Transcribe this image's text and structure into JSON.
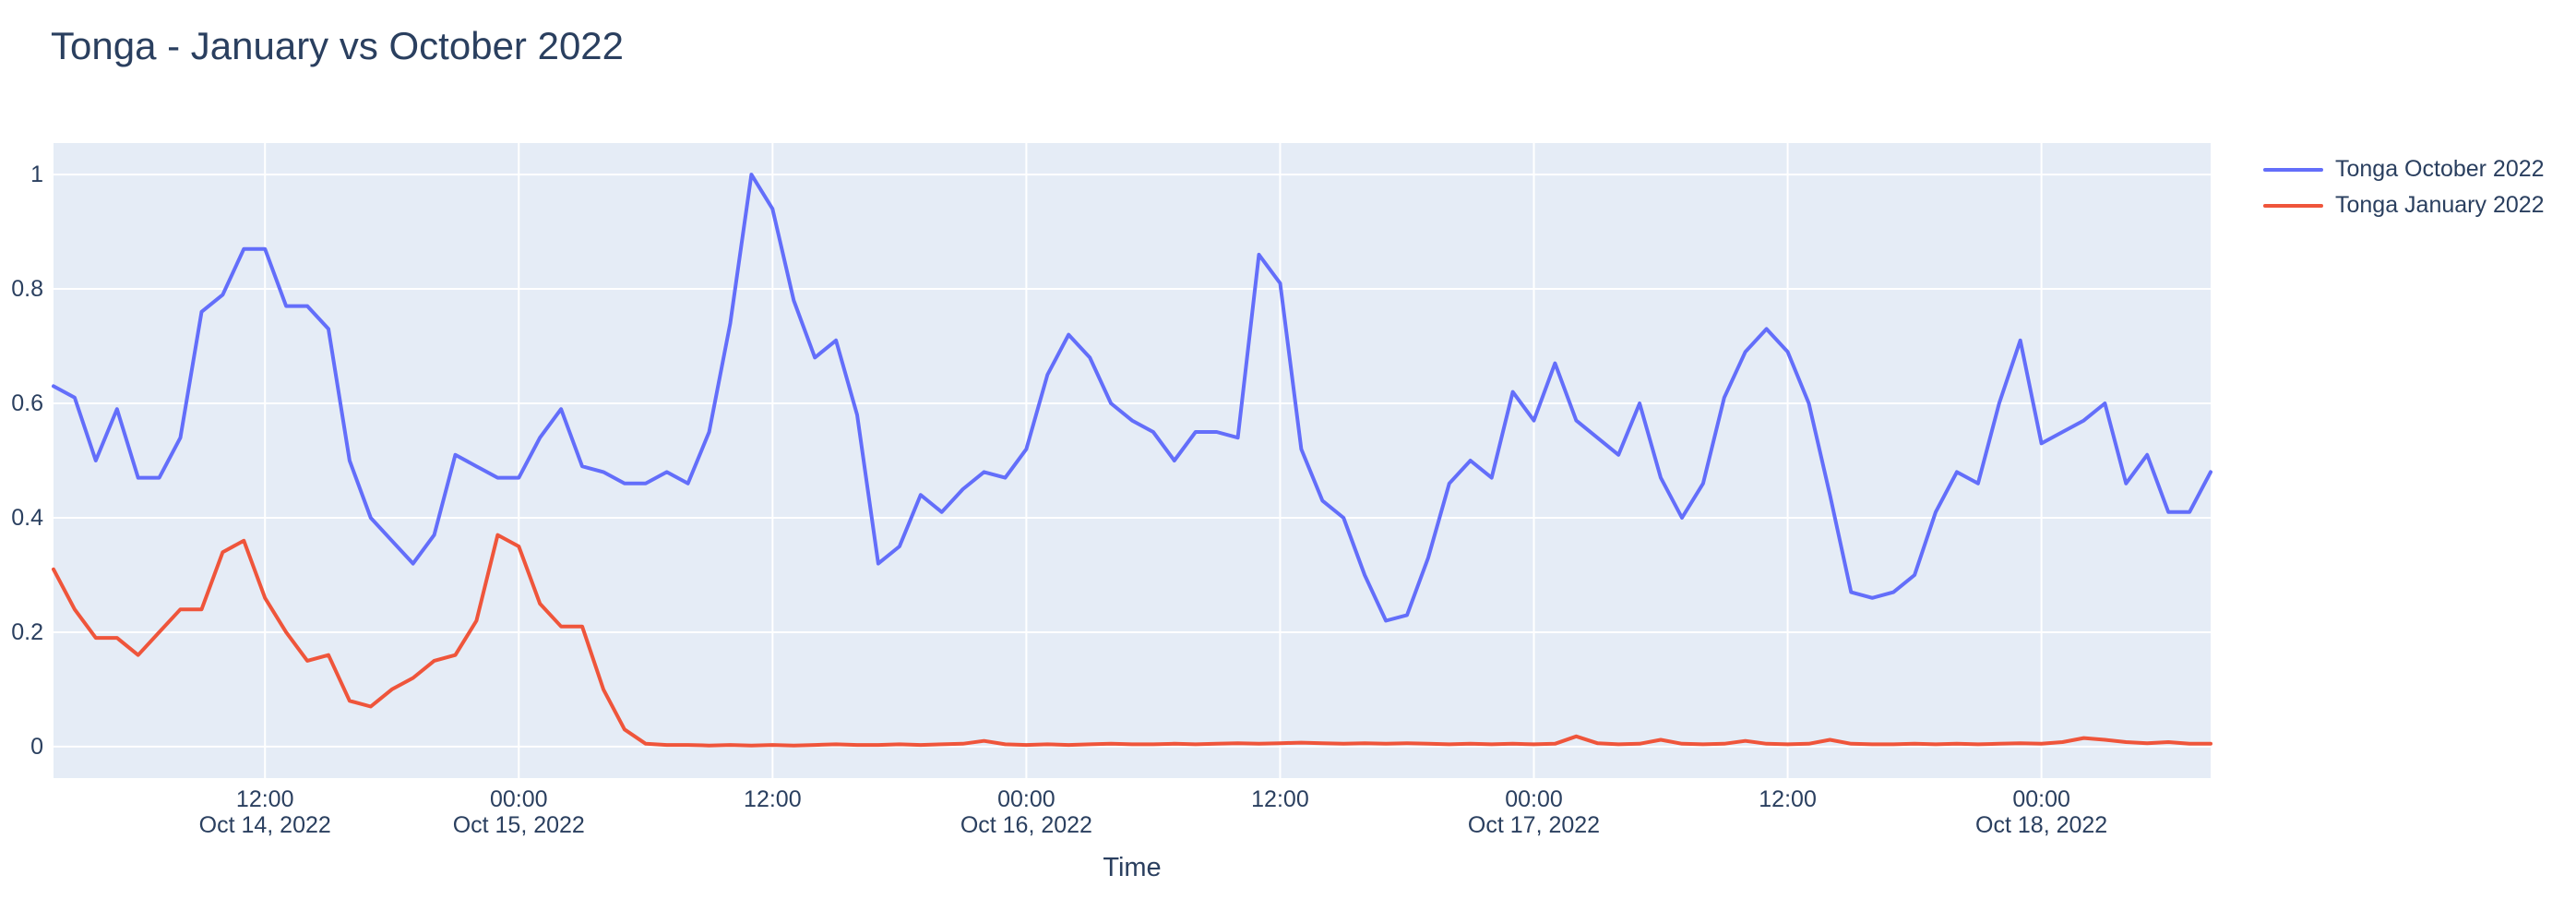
{
  "title": "Tonga - January vs October 2022",
  "colors": {
    "paper_bg": "#ffffff",
    "plot_bg": "#e5ecf6",
    "grid": "#ffffff",
    "text": "#2a3f5f",
    "october_line": "#636efa",
    "january_line": "#ef553b"
  },
  "x_axis": {
    "title": "Time",
    "ticks": [
      {
        "index": 10,
        "line1": "12:00",
        "line2": "Oct 14, 2022"
      },
      {
        "index": 22,
        "line1": "00:00",
        "line2": "Oct 15, 2022"
      },
      {
        "index": 34,
        "line1": "12:00",
        "line2": ""
      },
      {
        "index": 46,
        "line1": "00:00",
        "line2": "Oct 16, 2022"
      },
      {
        "index": 58,
        "line1": "12:00",
        "line2": ""
      },
      {
        "index": 70,
        "line1": "00:00",
        "line2": "Oct 17, 2022"
      },
      {
        "index": 82,
        "line1": "12:00",
        "line2": ""
      },
      {
        "index": 94,
        "line1": "00:00",
        "line2": "Oct 18, 2022"
      }
    ]
  },
  "y_axis": {
    "ticks": [
      {
        "label": "0",
        "value": 0
      },
      {
        "label": "0.2",
        "value": 0.2
      },
      {
        "label": "0.4",
        "value": 0.4
      },
      {
        "label": "0.6",
        "value": 0.6
      },
      {
        "label": "0.8",
        "value": 0.8
      },
      {
        "label": "1",
        "value": 1
      }
    ]
  },
  "chart_data": {
    "type": "line",
    "title": "Tonga - January vs October 2022",
    "xlabel": "Time",
    "ylabel": "",
    "ylim": [
      -0.055,
      1.055
    ],
    "grid": true,
    "legend_position": "top-right",
    "x_interval": "1 hour",
    "x": [
      "2022-10-14 02:00",
      "2022-10-14 03:00",
      "2022-10-14 04:00",
      "2022-10-14 05:00",
      "2022-10-14 06:00",
      "2022-10-14 07:00",
      "2022-10-14 08:00",
      "2022-10-14 09:00",
      "2022-10-14 10:00",
      "2022-10-14 11:00",
      "2022-10-14 12:00",
      "2022-10-14 13:00",
      "2022-10-14 14:00",
      "2022-10-14 15:00",
      "2022-10-14 16:00",
      "2022-10-14 17:00",
      "2022-10-14 18:00",
      "2022-10-14 19:00",
      "2022-10-14 20:00",
      "2022-10-14 21:00",
      "2022-10-14 22:00",
      "2022-10-14 23:00",
      "2022-10-15 00:00",
      "2022-10-15 01:00",
      "2022-10-15 02:00",
      "2022-10-15 03:00",
      "2022-10-15 04:00",
      "2022-10-15 05:00",
      "2022-10-15 06:00",
      "2022-10-15 07:00",
      "2022-10-15 08:00",
      "2022-10-15 09:00",
      "2022-10-15 10:00",
      "2022-10-15 11:00",
      "2022-10-15 12:00",
      "2022-10-15 13:00",
      "2022-10-15 14:00",
      "2022-10-15 15:00",
      "2022-10-15 16:00",
      "2022-10-15 17:00",
      "2022-10-15 18:00",
      "2022-10-15 19:00",
      "2022-10-15 20:00",
      "2022-10-15 21:00",
      "2022-10-15 22:00",
      "2022-10-15 23:00",
      "2022-10-16 00:00",
      "2022-10-16 01:00",
      "2022-10-16 02:00",
      "2022-10-16 03:00",
      "2022-10-16 04:00",
      "2022-10-16 05:00",
      "2022-10-16 06:00",
      "2022-10-16 07:00",
      "2022-10-16 08:00",
      "2022-10-16 09:00",
      "2022-10-16 10:00",
      "2022-10-16 11:00",
      "2022-10-16 12:00",
      "2022-10-16 13:00",
      "2022-10-16 14:00",
      "2022-10-16 15:00",
      "2022-10-16 16:00",
      "2022-10-16 17:00",
      "2022-10-16 18:00",
      "2022-10-16 19:00",
      "2022-10-16 20:00",
      "2022-10-16 21:00",
      "2022-10-16 22:00",
      "2022-10-16 23:00",
      "2022-10-17 00:00",
      "2022-10-17 01:00",
      "2022-10-17 02:00",
      "2022-10-17 03:00",
      "2022-10-17 04:00",
      "2022-10-17 05:00",
      "2022-10-17 06:00",
      "2022-10-17 07:00",
      "2022-10-17 08:00",
      "2022-10-17 09:00",
      "2022-10-17 10:00",
      "2022-10-17 11:00",
      "2022-10-17 12:00",
      "2022-10-17 13:00",
      "2022-10-17 14:00",
      "2022-10-17 15:00",
      "2022-10-17 16:00",
      "2022-10-17 17:00",
      "2022-10-17 18:00",
      "2022-10-17 19:00",
      "2022-10-17 20:00",
      "2022-10-17 21:00",
      "2022-10-17 22:00",
      "2022-10-17 23:00",
      "2022-10-18 00:00",
      "2022-10-18 01:00",
      "2022-10-18 02:00",
      "2022-10-18 03:00",
      "2022-10-18 04:00",
      "2022-10-18 05:00",
      "2022-10-18 06:00",
      "2022-10-18 07:00",
      "2022-10-18 08:00"
    ],
    "series": [
      {
        "name": "Tonga October 2022",
        "color": "#636efa",
        "values": [
          0.63,
          0.61,
          0.5,
          0.59,
          0.47,
          0.47,
          0.54,
          0.76,
          0.79,
          0.87,
          0.87,
          0.77,
          0.77,
          0.73,
          0.5,
          0.4,
          0.36,
          0.32,
          0.37,
          0.51,
          0.49,
          0.47,
          0.47,
          0.54,
          0.59,
          0.49,
          0.48,
          0.46,
          0.46,
          0.48,
          0.46,
          0.55,
          0.74,
          1.0,
          0.94,
          0.78,
          0.68,
          0.71,
          0.58,
          0.32,
          0.35,
          0.44,
          0.41,
          0.45,
          0.48,
          0.47,
          0.52,
          0.65,
          0.72,
          0.68,
          0.6,
          0.57,
          0.55,
          0.5,
          0.55,
          0.55,
          0.54,
          0.86,
          0.81,
          0.52,
          0.43,
          0.4,
          0.3,
          0.22,
          0.23,
          0.33,
          0.46,
          0.5,
          0.47,
          0.62,
          0.57,
          0.67,
          0.57,
          0.54,
          0.51,
          0.6,
          0.47,
          0.4,
          0.46,
          0.61,
          0.69,
          0.73,
          0.69,
          0.6,
          0.44,
          0.27,
          0.26,
          0.27,
          0.3,
          0.41,
          0.48,
          0.46,
          0.6,
          0.71,
          0.53,
          0.55,
          0.57,
          0.6,
          0.46,
          0.51,
          0.41,
          0.41,
          0.48
        ]
      },
      {
        "name": "Tonga January 2022",
        "color": "#ef553b",
        "values": [
          0.31,
          0.24,
          0.19,
          0.19,
          0.16,
          0.2,
          0.24,
          0.24,
          0.34,
          0.36,
          0.26,
          0.2,
          0.15,
          0.16,
          0.08,
          0.07,
          0.1,
          0.12,
          0.15,
          0.16,
          0.22,
          0.37,
          0.35,
          0.25,
          0.21,
          0.21,
          0.1,
          0.03,
          0.005,
          0.003,
          0.003,
          0.002,
          0.003,
          0.002,
          0.003,
          0.002,
          0.003,
          0.004,
          0.003,
          0.003,
          0.004,
          0.003,
          0.004,
          0.005,
          0.01,
          0.004,
          0.003,
          0.004,
          0.003,
          0.004,
          0.005,
          0.004,
          0.004,
          0.005,
          0.004,
          0.005,
          0.006,
          0.005,
          0.006,
          0.007,
          0.006,
          0.005,
          0.006,
          0.005,
          0.006,
          0.005,
          0.004,
          0.005,
          0.004,
          0.005,
          0.004,
          0.005,
          0.018,
          0.006,
          0.004,
          0.005,
          0.012,
          0.005,
          0.004,
          0.005,
          0.01,
          0.005,
          0.004,
          0.005,
          0.012,
          0.005,
          0.004,
          0.004,
          0.005,
          0.004,
          0.005,
          0.004,
          0.005,
          0.006,
          0.005,
          0.008,
          0.015,
          0.012,
          0.008,
          0.006,
          0.008,
          0.005,
          0.005
        ]
      }
    ]
  }
}
